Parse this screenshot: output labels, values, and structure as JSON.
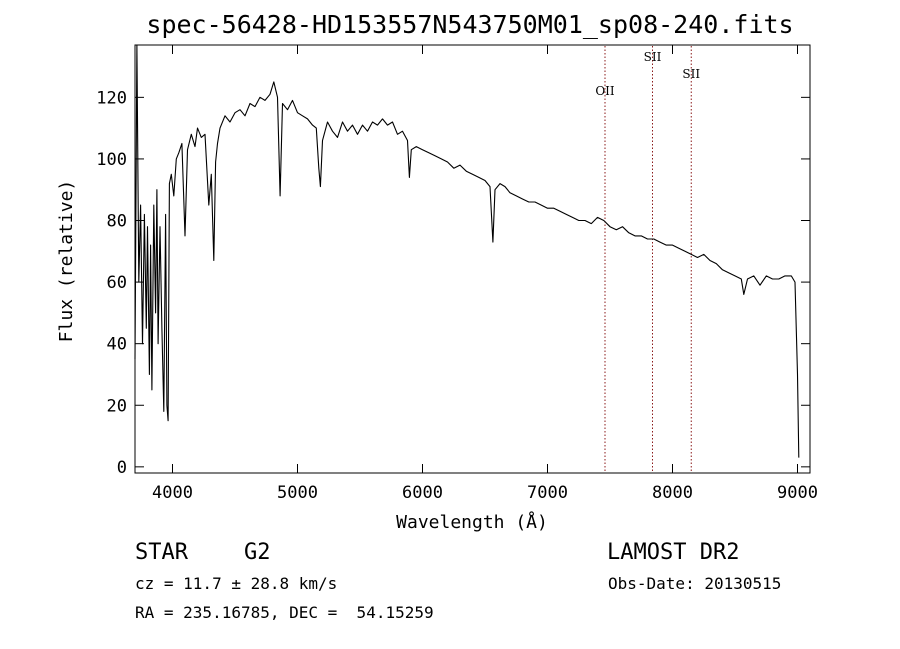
{
  "chart_data": {
    "type": "line",
    "title": "spec-56428-HD153557N543750M01_sp08-240.fits",
    "xlabel": "Wavelength (Å)",
    "ylabel": "Flux (relative)",
    "xlim": [
      3700,
      9100
    ],
    "ylim": [
      -2,
      137
    ],
    "xticks": [
      4000,
      5000,
      6000,
      7000,
      8000,
      9000
    ],
    "yticks": [
      0,
      20,
      40,
      60,
      80,
      100,
      120
    ],
    "series": [
      {
        "color": "#000000",
        "points": [
          [
            3700,
            35
          ],
          [
            3715,
            138
          ],
          [
            3730,
            60
          ],
          [
            3745,
            85
          ],
          [
            3760,
            40
          ],
          [
            3775,
            82
          ],
          [
            3790,
            45
          ],
          [
            3800,
            78
          ],
          [
            3815,
            30
          ],
          [
            3825,
            72
          ],
          [
            3835,
            25
          ],
          [
            3850,
            85
          ],
          [
            3865,
            50
          ],
          [
            3875,
            90
          ],
          [
            3885,
            40
          ],
          [
            3900,
            78
          ],
          [
            3915,
            45
          ],
          [
            3930,
            18
          ],
          [
            3945,
            82
          ],
          [
            3955,
            20
          ],
          [
            3965,
            15
          ],
          [
            3975,
            92
          ],
          [
            3990,
            95
          ],
          [
            4010,
            88
          ],
          [
            4030,
            100
          ],
          [
            4050,
            102
          ],
          [
            4075,
            105
          ],
          [
            4100,
            75
          ],
          [
            4120,
            103
          ],
          [
            4150,
            108
          ],
          [
            4180,
            104
          ],
          [
            4200,
            110
          ],
          [
            4230,
            107
          ],
          [
            4260,
            108
          ],
          [
            4290,
            85
          ],
          [
            4310,
            95
          ],
          [
            4330,
            67
          ],
          [
            4345,
            99
          ],
          [
            4360,
            105
          ],
          [
            4380,
            110
          ],
          [
            4420,
            114
          ],
          [
            4460,
            112
          ],
          [
            4500,
            115
          ],
          [
            4540,
            116
          ],
          [
            4580,
            114
          ],
          [
            4620,
            118
          ],
          [
            4660,
            117
          ],
          [
            4700,
            120
          ],
          [
            4740,
            119
          ],
          [
            4780,
            121
          ],
          [
            4810,
            125
          ],
          [
            4840,
            120
          ],
          [
            4861,
            88
          ],
          [
            4880,
            118
          ],
          [
            4920,
            116
          ],
          [
            4960,
            119
          ],
          [
            5000,
            115
          ],
          [
            5040,
            114
          ],
          [
            5080,
            113
          ],
          [
            5120,
            111
          ],
          [
            5150,
            110
          ],
          [
            5170,
            97
          ],
          [
            5183,
            91
          ],
          [
            5200,
            106
          ],
          [
            5240,
            112
          ],
          [
            5280,
            109
          ],
          [
            5320,
            107
          ],
          [
            5360,
            112
          ],
          [
            5400,
            109
          ],
          [
            5440,
            111
          ],
          [
            5480,
            108
          ],
          [
            5520,
            111
          ],
          [
            5560,
            109
          ],
          [
            5600,
            112
          ],
          [
            5640,
            111
          ],
          [
            5680,
            113
          ],
          [
            5720,
            111
          ],
          [
            5760,
            112
          ],
          [
            5800,
            108
          ],
          [
            5840,
            109
          ],
          [
            5880,
            106
          ],
          [
            5895,
            94
          ],
          [
            5910,
            103
          ],
          [
            5950,
            104
          ],
          [
            6000,
            103
          ],
          [
            6050,
            102
          ],
          [
            6100,
            101
          ],
          [
            6150,
            100
          ],
          [
            6200,
            99
          ],
          [
            6250,
            97
          ],
          [
            6300,
            98
          ],
          [
            6350,
            96
          ],
          [
            6400,
            95
          ],
          [
            6450,
            94
          ],
          [
            6500,
            93
          ],
          [
            6540,
            91
          ],
          [
            6563,
            73
          ],
          [
            6580,
            90
          ],
          [
            6620,
            92
          ],
          [
            6660,
            91
          ],
          [
            6700,
            89
          ],
          [
            6750,
            88
          ],
          [
            6800,
            87
          ],
          [
            6850,
            86
          ],
          [
            6900,
            86
          ],
          [
            6950,
            85
          ],
          [
            7000,
            84
          ],
          [
            7050,
            84
          ],
          [
            7100,
            83
          ],
          [
            7150,
            82
          ],
          [
            7200,
            81
          ],
          [
            7250,
            80
          ],
          [
            7300,
            80
          ],
          [
            7350,
            79
          ],
          [
            7400,
            81
          ],
          [
            7450,
            80
          ],
          [
            7500,
            78
          ],
          [
            7550,
            77
          ],
          [
            7600,
            78
          ],
          [
            7650,
            76
          ],
          [
            7700,
            75
          ],
          [
            7750,
            75
          ],
          [
            7800,
            74
          ],
          [
            7850,
            74
          ],
          [
            7900,
            73
          ],
          [
            7950,
            72
          ],
          [
            8000,
            72
          ],
          [
            8050,
            71
          ],
          [
            8100,
            70
          ],
          [
            8150,
            69
          ],
          [
            8200,
            68
          ],
          [
            8250,
            69
          ],
          [
            8300,
            67
          ],
          [
            8350,
            66
          ],
          [
            8400,
            64
          ],
          [
            8450,
            63
          ],
          [
            8500,
            62
          ],
          [
            8550,
            61
          ],
          [
            8570,
            56
          ],
          [
            8600,
            61
          ],
          [
            8650,
            62
          ],
          [
            8700,
            59
          ],
          [
            8750,
            62
          ],
          [
            8800,
            61
          ],
          [
            8850,
            61
          ],
          [
            8900,
            62
          ],
          [
            8950,
            62
          ],
          [
            8980,
            60
          ],
          [
            9000,
            30
          ],
          [
            9010,
            3
          ]
        ]
      }
    ],
    "vlines": [
      {
        "x": 7460,
        "label": "OII",
        "color": "#8b1a1a"
      },
      {
        "x": 7840,
        "label": "SII",
        "color": "#8b1a1a"
      },
      {
        "x": 8150,
        "label": "SII",
        "color": "#8b1a1a"
      }
    ],
    "grid": false
  },
  "info": {
    "object_type": "STAR",
    "subclass": "G2",
    "survey": "LAMOST DR2",
    "cz": "cz = 11.7 ± 28.8 km/s",
    "obs_date": "Obs-Date: 20130515",
    "coords": "RA = 235.16785, DEC =  54.15259"
  }
}
